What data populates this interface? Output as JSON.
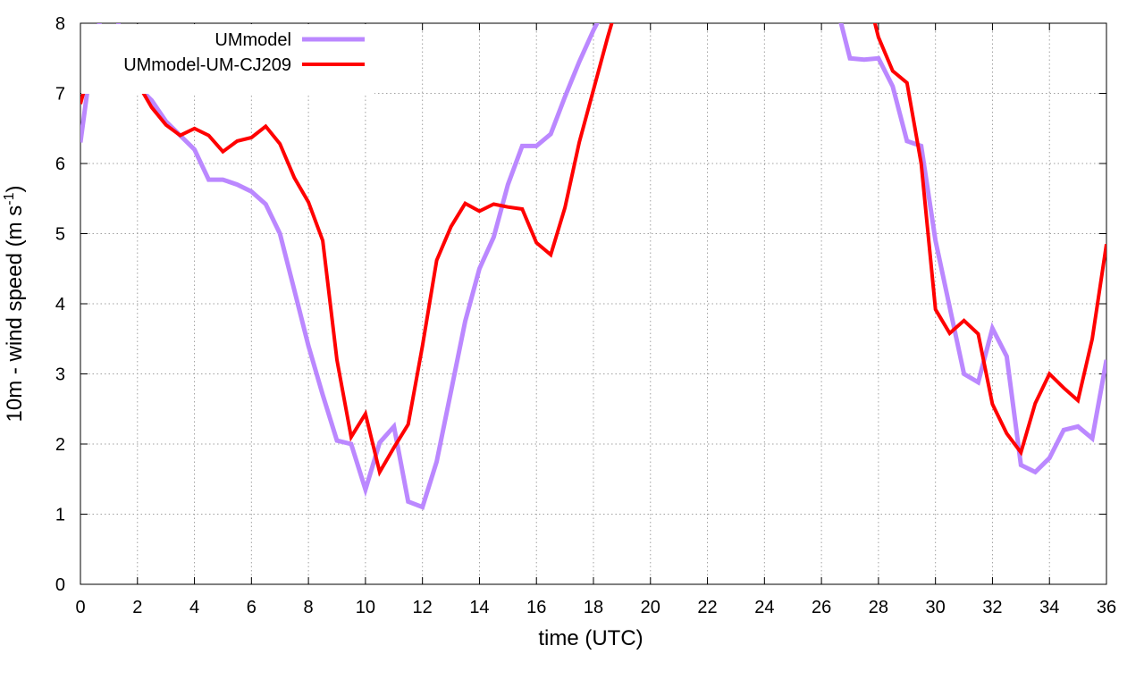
{
  "chart_data": {
    "type": "line",
    "xlabel": "time (UTC)",
    "ylabel": "10m - wind speed  (m s",
    "ylabel_sup": "-1",
    "ylabel_close": ")",
    "xlim": [
      0,
      36
    ],
    "ylim": [
      0,
      8
    ],
    "xticks": [
      0,
      2,
      4,
      6,
      8,
      10,
      12,
      14,
      16,
      18,
      20,
      22,
      24,
      26,
      28,
      30,
      32,
      34,
      36
    ],
    "yticks": [
      0,
      1,
      2,
      3,
      4,
      5,
      6,
      7,
      8
    ],
    "grid": true,
    "legend_position": "top-left",
    "series": [
      {
        "name": "UMmodel",
        "color": "#bb88ff",
        "x": [
          0,
          0.5,
          1,
          1.25,
          1.5,
          2,
          2.5,
          3,
          3.5,
          4,
          4.5,
          5,
          5.5,
          6,
          6.5,
          7,
          7.5,
          8,
          8.5,
          9,
          9.5,
          10,
          10.5,
          11,
          11.5,
          12,
          12.5,
          13,
          13.5,
          14,
          14.5,
          15,
          15.5,
          16,
          16.5,
          17,
          17.5,
          18,
          18.5,
          19,
          26.5,
          27,
          27.5,
          28,
          28.5,
          29,
          29.5,
          30,
          30.5,
          31,
          31.5,
          32,
          32.5,
          33,
          33.5,
          34,
          34.5,
          35,
          35.5,
          36
        ],
        "y": [
          6.3,
          7.8,
          8.4,
          8.3,
          7.4,
          7.1,
          6.9,
          6.6,
          6.4,
          6.2,
          5.77,
          5.77,
          5.7,
          5.6,
          5.42,
          5.0,
          4.2,
          3.4,
          2.7,
          2.05,
          2.0,
          1.35,
          2.02,
          2.25,
          1.18,
          1.1,
          1.75,
          2.75,
          3.75,
          4.5,
          4.95,
          5.7,
          6.25,
          6.25,
          6.42,
          6.95,
          7.45,
          7.9,
          8.3,
          8.6,
          8.3,
          7.5,
          7.48,
          7.5,
          7.1,
          6.32,
          6.25,
          4.9,
          3.95,
          3.0,
          2.88,
          3.65,
          3.25,
          1.7,
          1.6,
          1.8,
          2.2,
          2.25,
          2.08,
          3.2
        ]
      },
      {
        "name": "UMmodel-UM-CJ209",
        "color": "#ff0000",
        "x": [
          0,
          0.5,
          1,
          1.5,
          2,
          2.5,
          3,
          3.5,
          4,
          4.5,
          5,
          5.5,
          6,
          6.5,
          7,
          7.5,
          8,
          8.5,
          9,
          9.5,
          10,
          10.5,
          11,
          11.5,
          12,
          12.5,
          13,
          13.5,
          14,
          14.5,
          15,
          15.5,
          16,
          16.5,
          17,
          17.5,
          18,
          18.5,
          19,
          27.5,
          28,
          28.5,
          29,
          29.5,
          30,
          30.5,
          31,
          31.5,
          32,
          32.5,
          33,
          33.5,
          34,
          34.5,
          35,
          35.5,
          36
        ],
        "y": [
          6.85,
          7.6,
          7.82,
          7.27,
          7.15,
          6.8,
          6.55,
          6.4,
          6.5,
          6.4,
          6.17,
          6.32,
          6.37,
          6.53,
          6.28,
          5.8,
          5.45,
          4.9,
          3.2,
          2.1,
          2.43,
          1.6,
          1.95,
          2.28,
          3.4,
          4.62,
          5.1,
          5.43,
          5.32,
          5.42,
          5.38,
          5.35,
          4.87,
          4.7,
          5.37,
          6.3,
          7.05,
          7.8,
          8.5,
          8.6,
          7.8,
          7.32,
          7.15,
          6.0,
          3.92,
          3.58,
          3.76,
          3.57,
          2.57,
          2.15,
          1.88,
          2.58,
          3.0,
          2.8,
          2.62,
          3.5,
          4.85
        ]
      }
    ]
  }
}
